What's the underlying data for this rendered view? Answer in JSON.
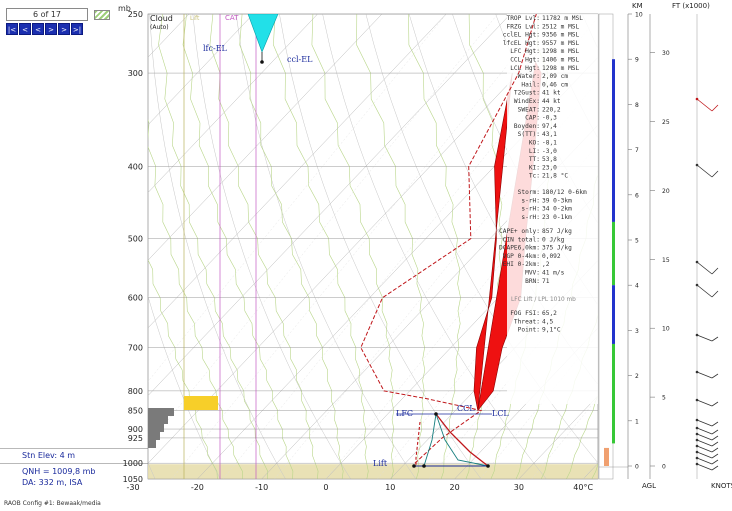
{
  "nav": {
    "counter": "6 of 17",
    "buttons": [
      "|<",
      "<",
      "<",
      ">",
      ">",
      ">|"
    ],
    "mb_label": "mb"
  },
  "station": {
    "elev": "Stn Elev: 4 m",
    "qnh": "QNH = 1009,8 mb",
    "da": "DA: 332 m, ISA"
  },
  "config": "RAOB Config #1: Bewaak/media",
  "chart_data": {
    "type": "skew-t",
    "y_axis": {
      "unit": "mb",
      "scale": "log",
      "ylim": [
        1050,
        250
      ],
      "ticks": [
        "250",
        "300",
        "400",
        "500",
        "600",
        "700",
        "800",
        "850",
        "900",
        "925",
        "1000",
        "1050"
      ]
    },
    "x_axis": {
      "ticks": [
        "-30",
        "-20",
        "-10",
        "0",
        "10",
        "20",
        "30",
        "40°C"
      ],
      "xlim": [
        -30,
        40
      ]
    },
    "labels": {
      "cloud": "Cloud",
      "auto": "(Auto)",
      "lift": "Lift",
      "cat": "CAT",
      "lfc_el": "lfc-EL",
      "ccl_el": "ccl-EL",
      "lfc": "LFC",
      "ccl": "CCL",
      "lcl": "LCL",
      "lift_text": "Lift"
    },
    "dewpoint_profile": [
      {
        "p": 1000,
        "td": 11.5
      },
      {
        "p": 925,
        "td": 12
      },
      {
        "p": 850,
        "td": 14
      },
      {
        "p": 820,
        "td": 4
      },
      {
        "p": 800,
        "td": -4
      },
      {
        "p": 700,
        "td": -14
      },
      {
        "p": 600,
        "td": -18
      },
      {
        "p": 500,
        "td": -13
      },
      {
        "p": 400,
        "td": -24
      },
      {
        "p": 300,
        "td": -30
      },
      {
        "p": 250,
        "td": -36
      }
    ],
    "parcel_path": [
      {
        "p": 1000,
        "t": 11
      },
      {
        "p": 850,
        "t": 13.5
      },
      {
        "p": 800,
        "t": 12
      },
      {
        "p": 700,
        "t": 6
      },
      {
        "p": 600,
        "t": 0
      },
      {
        "p": 500,
        "t": -9
      },
      {
        "p": 400,
        "t": -20
      },
      {
        "p": 300,
        "t": -35
      }
    ],
    "environment_curve": [
      {
        "p": 1000,
        "t": 22
      },
      {
        "p": 925,
        "t": 19
      },
      {
        "p": 850,
        "t": 14
      },
      {
        "p": 800,
        "t": 12.5
      },
      {
        "p": 700,
        "t": 8
      },
      {
        "p": 600,
        "t": 3
      },
      {
        "p": 500,
        "t": -5
      },
      {
        "p": 400,
        "t": -15
      },
      {
        "p": 300,
        "t": -30
      }
    ],
    "indices": [
      {
        "k": "TROP Lvl:",
        "v": "11782 m MSL"
      },
      {
        "k": "FRZG Lvl:",
        "v": "2512 m MSL"
      },
      {
        "k": "cclEL Hgt:",
        "v": "9356 m MSL"
      },
      {
        "k": "lfcEL Hgt:",
        "v": "9557 m MSL"
      },
      {
        "k": "LFC Hgt:",
        "v": "1298 m MSL"
      },
      {
        "k": "CCL Hgt:",
        "v": "1406 m MSL"
      },
      {
        "k": "LCL Hgt:",
        "v": "1298 m MSL"
      },
      {
        "k": "Water:",
        "v": "2,09 cm"
      },
      {
        "k": "Hail:",
        "v": "0,46 cm"
      },
      {
        "k": "T2Gust:",
        "v": "41 kt"
      },
      {
        "k": "WindEx:",
        "v": "44 kt"
      },
      {
        "k": "SWEAT:",
        "v": "220,2"
      },
      {
        "k": "CAP:",
        "v": "-0,3"
      },
      {
        "k": "Boyden:",
        "v": "97,4"
      },
      {
        "k": "S(TT):",
        "v": "43,1"
      },
      {
        "k": "KO:",
        "v": "-8,1"
      },
      {
        "k": "LI:",
        "v": "-3,0"
      },
      {
        "k": "TT:",
        "v": "53,8"
      },
      {
        "k": "KI:",
        "v": "23,0"
      },
      {
        "k": "Tc:",
        "v": "21,8 °C"
      }
    ],
    "storm_block": [
      {
        "k": "Storm:",
        "v": "180/12 0-6km"
      },
      {
        "k": "s-rH:",
        "v": "39  0-3km"
      },
      {
        "k": "s-rH:",
        "v": "34  0-2km"
      },
      {
        "k": "s-rH:",
        "v": "23  0-1km"
      }
    ],
    "cape_block": [
      {
        "k": "CAPE+ only:",
        "v": "857 J/kg"
      },
      {
        "k": "CIN total:",
        "v": "0 J/kg"
      },
      {
        "k": "DCAPE6,0km:",
        "v": "375 J/kg"
      },
      {
        "k": "VGP 0-4km:",
        "v": "0,092"
      },
      {
        "k": "EHI 0-2km:",
        "v": ",2"
      },
      {
        "k": "MVV:",
        "v": "41 m/s"
      },
      {
        "k": "BRN:",
        "v": "71"
      }
    ],
    "lift_note": "LFC Lift / LPL 1010 mb",
    "fog_block": [
      {
        "k": "FOG FSI:",
        "v": "65,2"
      },
      {
        "k": "Threat:",
        "v": "4,5"
      },
      {
        "k": "Point:",
        "v": "9,1°C"
      }
    ],
    "km_axis": {
      "title": "KM",
      "ticks": [
        "0",
        "1",
        "2",
        "3",
        "4",
        "5",
        "6",
        "7",
        "8",
        "9",
        "10"
      ],
      "label": "AGL"
    },
    "ft_axis": {
      "title": "FT (x1000)",
      "ticks": [
        "0",
        "5",
        "10",
        "15",
        "20",
        "25",
        "30"
      ],
      "label": "KNOTS"
    }
  }
}
